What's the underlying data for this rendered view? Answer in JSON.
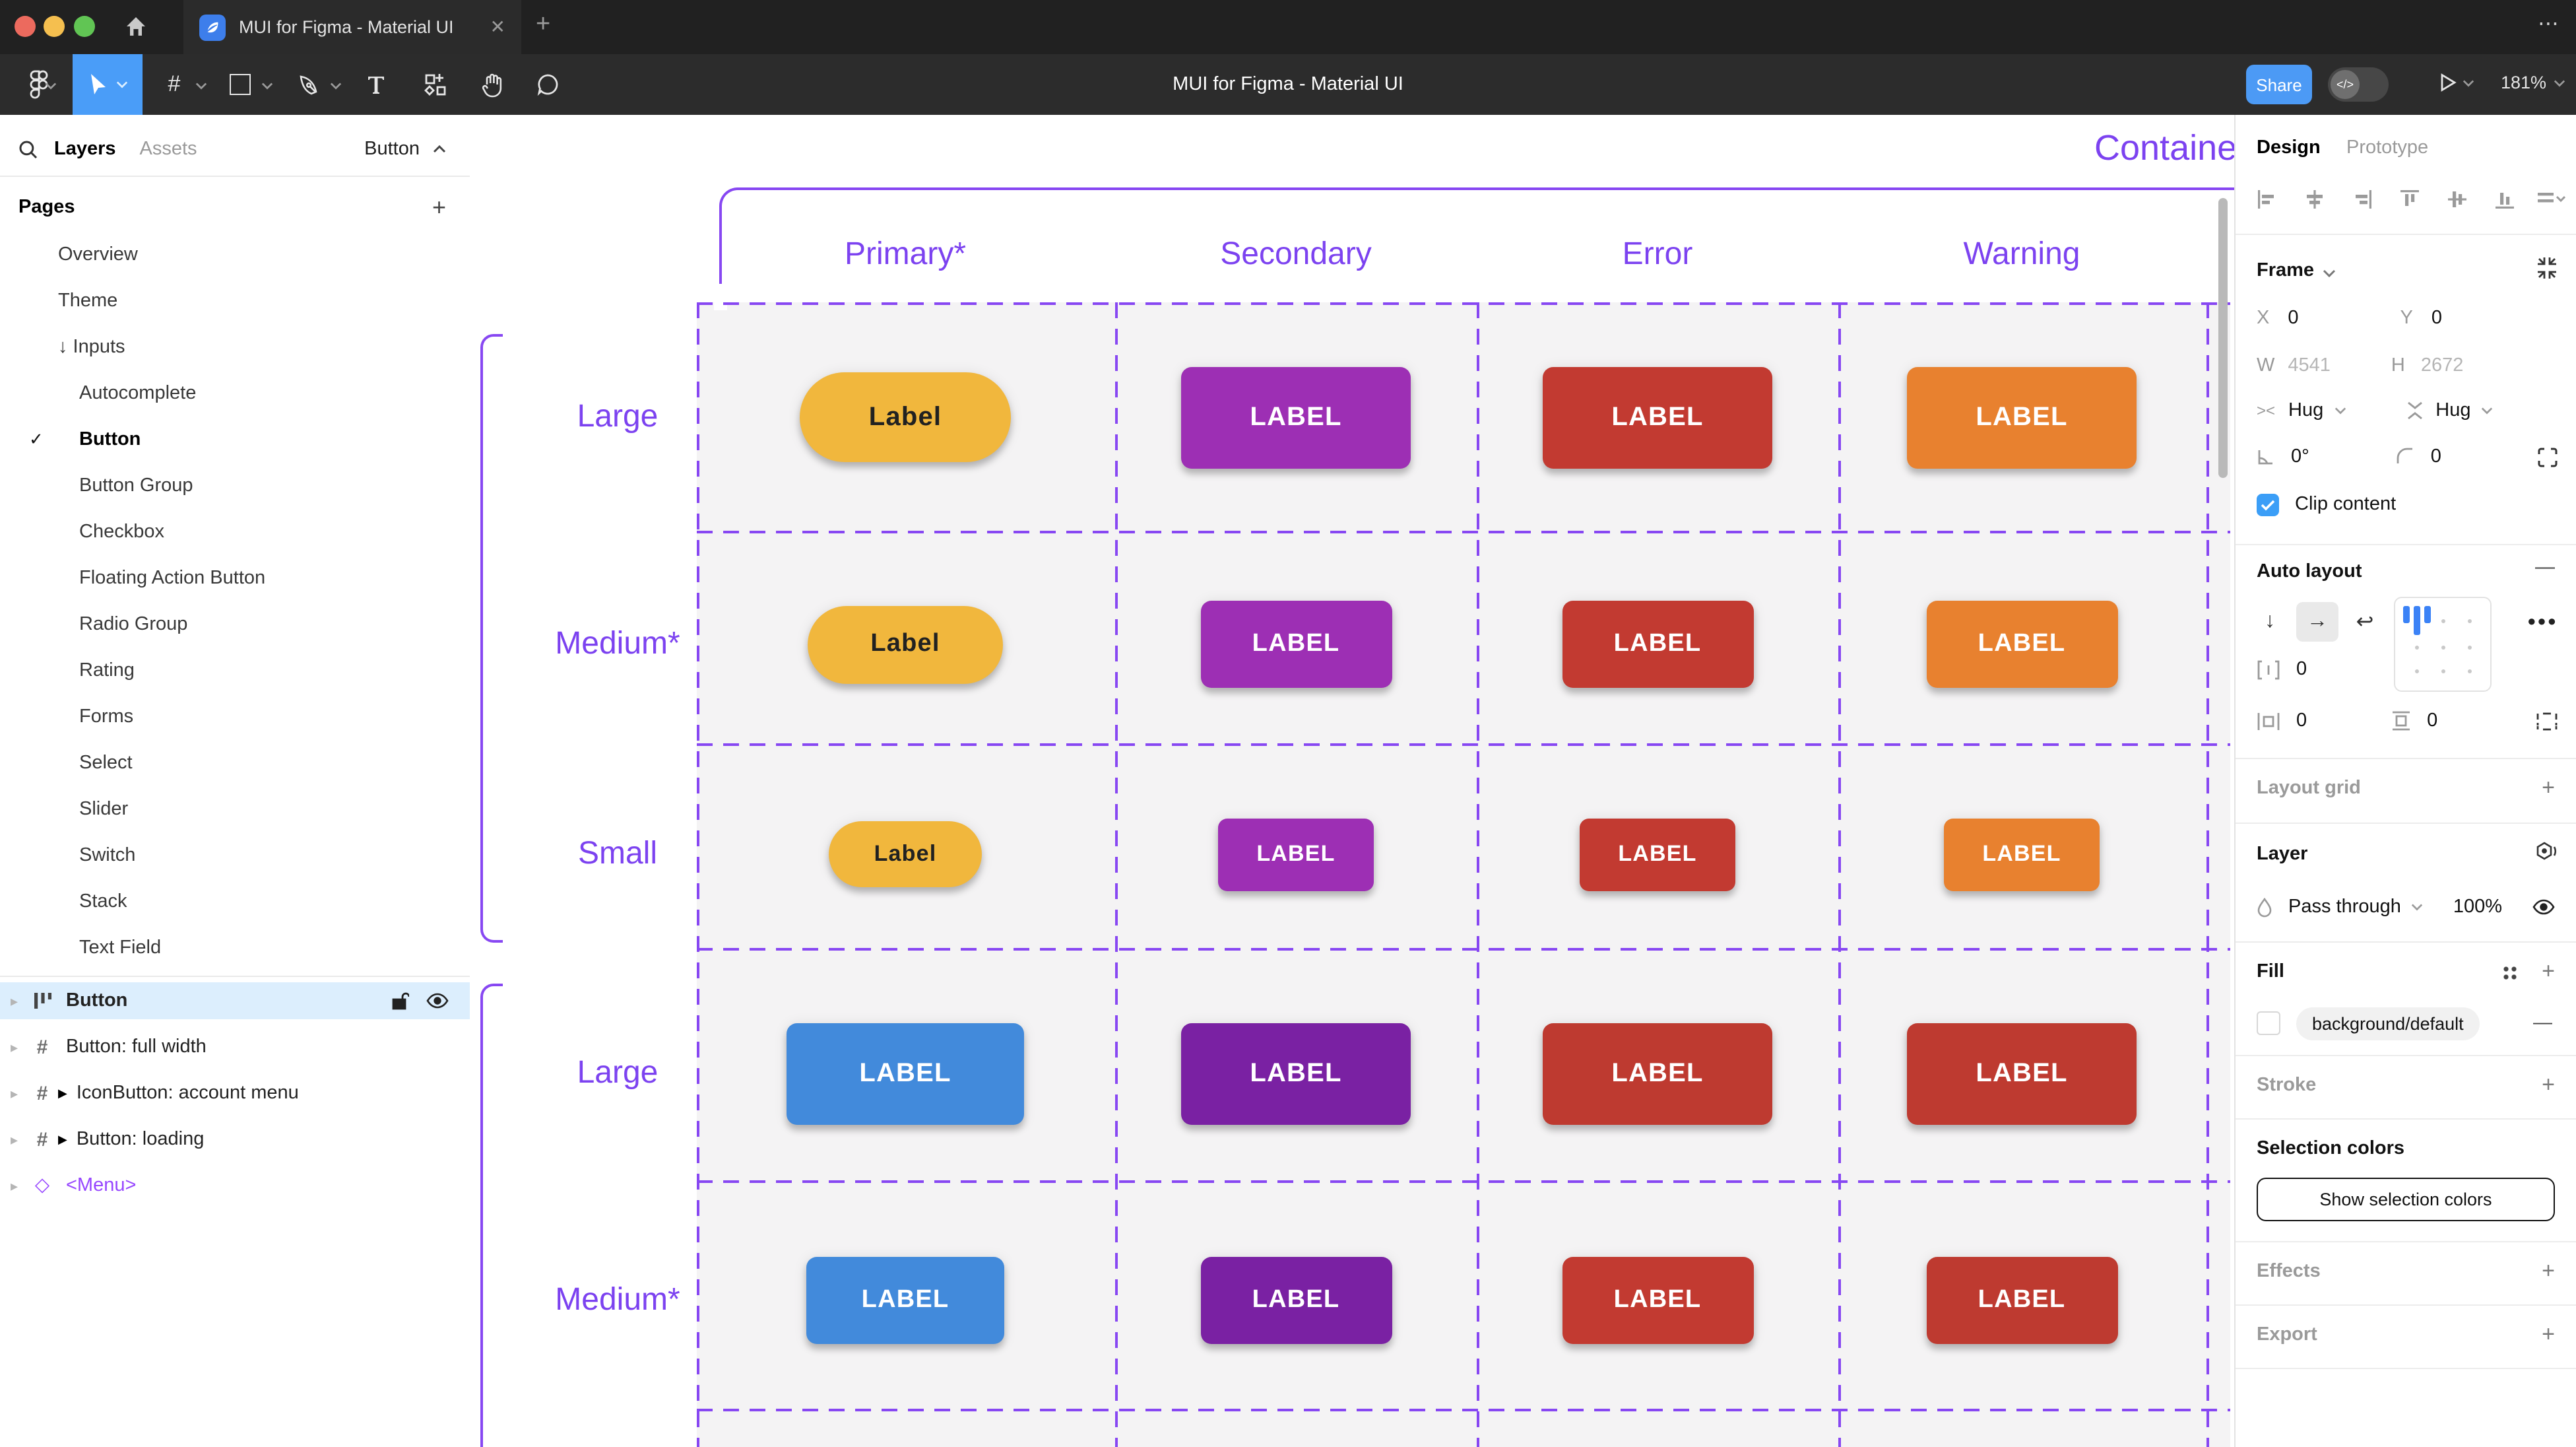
{
  "window": {
    "tab_title": "MUI for Figma - Material UI",
    "close_glyph": "✕",
    "new_tab_glyph": "+",
    "more_glyph": "•••"
  },
  "toolbar": {
    "document_title": "MUI for Figma - Material UI",
    "share_label": "Share",
    "zoom_level": "181%"
  },
  "left_panel": {
    "layers_tab": "Layers",
    "assets_tab": "Assets",
    "page_chip": "Button",
    "pages_header": "Pages",
    "pages": [
      {
        "label": "Overview",
        "indent": 1
      },
      {
        "label": "Theme",
        "indent": 1
      },
      {
        "label": "Inputs",
        "indent": 1,
        "arrow": "↓"
      },
      {
        "label": "Autocomplete",
        "indent": 2
      },
      {
        "label": "Button",
        "indent": 2,
        "current": true
      },
      {
        "label": "Button Group",
        "indent": 2
      },
      {
        "label": "Checkbox",
        "indent": 2
      },
      {
        "label": "Floating Action Button",
        "indent": 2
      },
      {
        "label": "Radio Group",
        "indent": 2
      },
      {
        "label": "Rating",
        "indent": 2
      },
      {
        "label": "Forms",
        "indent": 2
      },
      {
        "label": "Select",
        "indent": 2
      },
      {
        "label": "Slider",
        "indent": 2
      },
      {
        "label": "Switch",
        "indent": 2
      },
      {
        "label": "Stack",
        "indent": 2
      },
      {
        "label": "Text Field",
        "indent": 2
      }
    ],
    "layers": [
      {
        "name": "Button",
        "icon": "autolayout",
        "selected": true
      },
      {
        "name": "Button: full width",
        "icon": "frame"
      },
      {
        "name": "IconButton: account menu",
        "icon": "frame",
        "instance": true
      },
      {
        "name": "Button: loading",
        "icon": "frame",
        "instance": true
      },
      {
        "name": "<Menu>",
        "icon": "component",
        "purple": true
      }
    ]
  },
  "canvas": {
    "frame_title": "Contained",
    "column_headers": [
      "Primary*",
      "Secondary",
      "Error",
      "Warning"
    ],
    "row_labels": [
      "Large",
      "Medium*",
      "Small",
      "Large",
      "Medium*"
    ],
    "accent_line": "#8747F2",
    "accent_text": "#7C42F0",
    "cell_bg": "#F4F3F4",
    "button_rows": [
      {
        "size": "large",
        "buttons": [
          {
            "text": "Label",
            "bg": "#F1B73D",
            "fg": "#212121",
            "shape": "pill"
          },
          {
            "text": "LABEL",
            "bg": "#9D2FB4",
            "fg": "#FFFFFF",
            "shape": "rect"
          },
          {
            "text": "LABEL",
            "bg": "#C23A31",
            "fg": "#FFFFFF",
            "shape": "rect"
          },
          {
            "text": "LABEL",
            "bg": "#E8812F",
            "fg": "#FFFFFF",
            "shape": "rect"
          }
        ]
      },
      {
        "size": "medium",
        "buttons": [
          {
            "text": "Label",
            "bg": "#F1B73D",
            "fg": "#212121",
            "shape": "pill"
          },
          {
            "text": "LABEL",
            "bg": "#9D2FB4",
            "fg": "#FFFFFF",
            "shape": "rect"
          },
          {
            "text": "LABEL",
            "bg": "#C23A31",
            "fg": "#FFFFFF",
            "shape": "rect"
          },
          {
            "text": "LABEL",
            "bg": "#E8812F",
            "fg": "#FFFFFF",
            "shape": "rect"
          }
        ]
      },
      {
        "size": "small",
        "buttons": [
          {
            "text": "Label",
            "bg": "#F1B73D",
            "fg": "#212121",
            "shape": "pill"
          },
          {
            "text": "LABEL",
            "bg": "#9D2FB4",
            "fg": "#FFFFFF",
            "shape": "rect"
          },
          {
            "text": "LABEL",
            "bg": "#C23A31",
            "fg": "#FFFFFF",
            "shape": "rect"
          },
          {
            "text": "LABEL",
            "bg": "#E8812F",
            "fg": "#FFFFFF",
            "shape": "rect"
          }
        ]
      },
      {
        "size": "large",
        "buttons": [
          {
            "text": "LABEL",
            "bg": "#428ADB",
            "fg": "#FFFFFF",
            "shape": "rect",
            "w": 180
          },
          {
            "text": "LABEL",
            "bg": "#7A21A3",
            "fg": "#FFFFFF",
            "shape": "rect"
          },
          {
            "text": "LABEL",
            "bg": "#BE3A30",
            "fg": "#FFFFFF",
            "shape": "rect"
          },
          {
            "text": "LABEL",
            "bg": "#BE3A30",
            "fg": "#FFFFFF",
            "shape": "rect"
          }
        ]
      },
      {
        "size": "medium",
        "buttons": [
          {
            "text": "LABEL",
            "bg": "#428ADB",
            "fg": "#FFFFFF",
            "shape": "rect",
            "w": 150
          },
          {
            "text": "LABEL",
            "bg": "#7A21A3",
            "fg": "#FFFFFF",
            "shape": "rect"
          },
          {
            "text": "LABEL",
            "bg": "#C23A31",
            "fg": "#FFFFFF",
            "shape": "rect"
          },
          {
            "text": "LABEL",
            "bg": "#BE3A30",
            "fg": "#FFFFFF",
            "shape": "rect"
          }
        ]
      }
    ]
  },
  "right_panel": {
    "design_tab": "Design",
    "prototype_tab": "Prototype",
    "frame": {
      "label": "Frame",
      "x_label": "X",
      "x": "0",
      "y_label": "Y",
      "y": "0",
      "w_label": "W",
      "w": "4541",
      "h_label": "H",
      "h": "2672",
      "hug_h": "Hug",
      "hug_v": "Hug",
      "rotation": "0°",
      "corner_radius": "0",
      "clip_content": "Clip content"
    },
    "auto_layout": {
      "label": "Auto layout",
      "gap": "0",
      "padding_h": "0",
      "padding_v": "0",
      "more_glyph": "•••",
      "remove_glyph": "—"
    },
    "layout_grid_label": "Layout grid",
    "layer": {
      "label": "Layer",
      "blend_mode": "Pass through",
      "opacity": "100%"
    },
    "fill": {
      "label": "Fill",
      "token": "background/default",
      "remove_glyph": "—"
    },
    "stroke_label": "Stroke",
    "selection_colors": {
      "label": "Selection colors",
      "button_label": "Show selection colors"
    },
    "effects_label": "Effects",
    "export_label": "Export"
  }
}
